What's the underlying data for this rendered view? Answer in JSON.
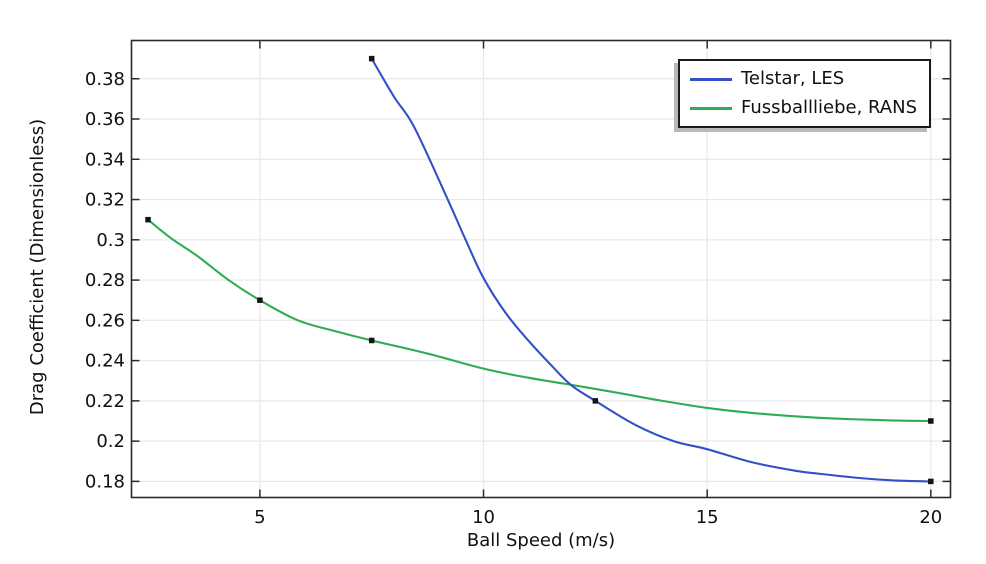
{
  "figure": {
    "background": "#ffffff",
    "axis_color": "#2b2b2b",
    "grid_color": "#e8e8e8",
    "text_color": "#111111",
    "legend_border_color": "#1a1a1a",
    "legend_shadow_color": "#b9b9b9",
    "marker_color": "#141414"
  },
  "chart_data": {
    "type": "line",
    "title": "",
    "xlabel": "Ball Speed (m/s)",
    "ylabel": "Drag Coefficient (Dimensionless)",
    "xlim": [
      2.13,
      20.44
    ],
    "ylim": [
      0.172,
      0.399
    ],
    "grid": true,
    "legend_position": "top-right",
    "x_ticks": [
      {
        "value": 5,
        "label": "5"
      },
      {
        "value": 10,
        "label": "10"
      },
      {
        "value": 15,
        "label": "15"
      },
      {
        "value": 20,
        "label": "20"
      }
    ],
    "y_ticks": [
      {
        "value": 0.18,
        "label": "0.18"
      },
      {
        "value": 0.2,
        "label": "0.2"
      },
      {
        "value": 0.22,
        "label": "0.22"
      },
      {
        "value": 0.24,
        "label": "0.24"
      },
      {
        "value": 0.26,
        "label": "0.26"
      },
      {
        "value": 0.28,
        "label": "0.28"
      },
      {
        "value": 0.3,
        "label": "0.3"
      },
      {
        "value": 0.32,
        "label": "0.32"
      },
      {
        "value": 0.34,
        "label": "0.34"
      },
      {
        "value": 0.36,
        "label": "0.36"
      },
      {
        "value": 0.38,
        "label": "0.38"
      }
    ],
    "series": [
      {
        "name": "Telstar, LES",
        "color": "#3450c8",
        "marker": "square",
        "data_points": [
          [
            7.5,
            0.39
          ],
          [
            12.5,
            0.22
          ],
          [
            20,
            0.18
          ]
        ],
        "curve_samples": [
          [
            7.5,
            0.39
          ],
          [
            8.0,
            0.371
          ],
          [
            8.45,
            0.356
          ],
          [
            9.2,
            0.32
          ],
          [
            9.6,
            0.3
          ],
          [
            10,
            0.281
          ],
          [
            10.5,
            0.2635
          ],
          [
            11,
            0.25
          ],
          [
            11.5,
            0.238
          ],
          [
            11.95,
            0.228
          ],
          [
            12.5,
            0.22
          ],
          [
            13.4,
            0.208
          ],
          [
            14.25,
            0.2
          ],
          [
            15,
            0.196
          ],
          [
            16,
            0.1895
          ],
          [
            17,
            0.1852
          ],
          [
            17.5,
            0.1838
          ],
          [
            18.5,
            0.1815
          ],
          [
            19.25,
            0.1804
          ],
          [
            20,
            0.18
          ]
        ]
      },
      {
        "name": "Fussballliebe, RANS",
        "color": "#2fad55",
        "marker": "square",
        "data_points": [
          [
            2.5,
            0.31
          ],
          [
            5,
            0.27
          ],
          [
            7.5,
            0.25
          ],
          [
            20,
            0.21
          ]
        ],
        "curve_samples": [
          [
            2.5,
            0.31
          ],
          [
            3.0,
            0.301
          ],
          [
            3.6,
            0.292
          ],
          [
            4.3,
            0.28
          ],
          [
            5,
            0.27
          ],
          [
            5.85,
            0.26
          ],
          [
            6.7,
            0.2545
          ],
          [
            7.5,
            0.25
          ],
          [
            8.75,
            0.2435
          ],
          [
            10,
            0.236
          ],
          [
            11,
            0.2315
          ],
          [
            11.95,
            0.228
          ],
          [
            13,
            0.224
          ],
          [
            14,
            0.22
          ],
          [
            15,
            0.2165
          ],
          [
            16,
            0.214
          ],
          [
            17.4,
            0.2117
          ],
          [
            18.5,
            0.2107
          ],
          [
            19.25,
            0.2102
          ],
          [
            20,
            0.21
          ]
        ]
      }
    ]
  }
}
